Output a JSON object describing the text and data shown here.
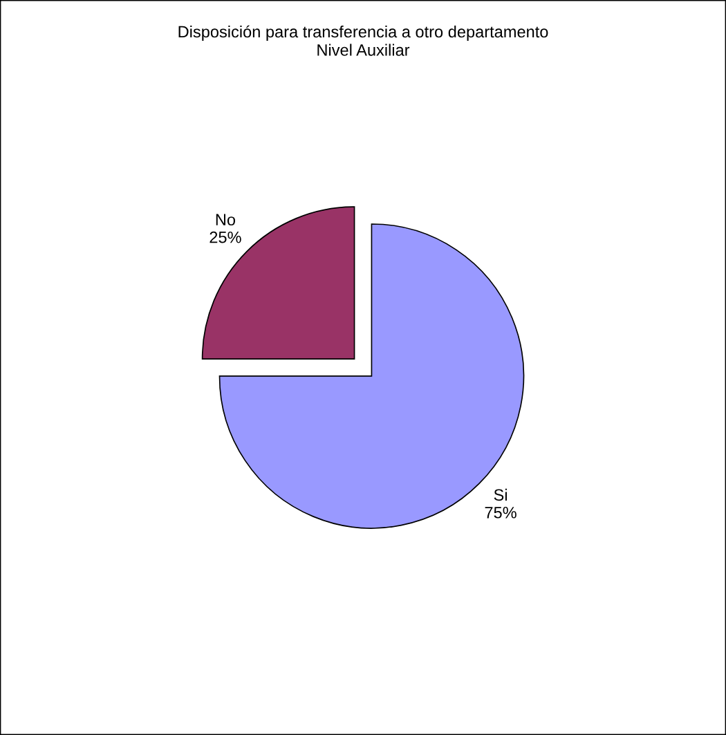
{
  "chart_data": {
    "type": "pie",
    "title": "Disposición para transferencia a otro departamento",
    "subtitle": "Nivel Auxiliar",
    "categories": [
      "Si",
      "No"
    ],
    "values": [
      75,
      25
    ],
    "value_labels": [
      "75%",
      "25%"
    ],
    "colors": [
      "#9999ff",
      "#993366"
    ],
    "legend": false
  }
}
